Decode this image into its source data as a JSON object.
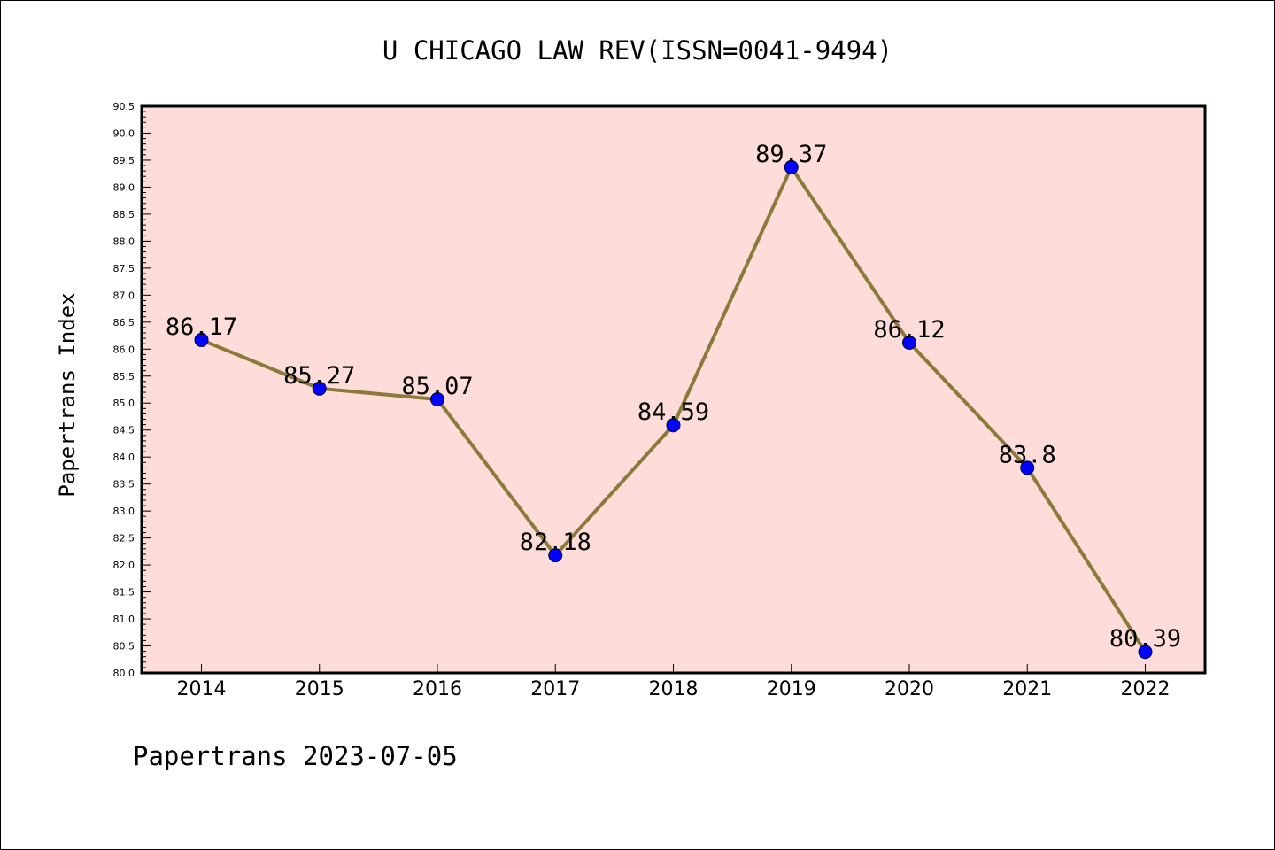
{
  "chart_data": {
    "type": "line",
    "title": "U CHICAGO LAW REV(ISSN=0041-9494)",
    "ylabel": "Papertrans Index",
    "xlabel": "",
    "categories": [
      "2014",
      "2015",
      "2016",
      "2017",
      "2018",
      "2019",
      "2020",
      "2021",
      "2022"
    ],
    "series": [
      {
        "values": [
          86.17,
          85.27,
          85.07,
          82.18,
          84.59,
          89.37,
          86.12,
          83.8,
          80.39
        ]
      }
    ],
    "data_labels": [
      "86.17",
      "85.27",
      "85.07",
      "82.18",
      "84.59",
      "89.37",
      "86.12",
      "83.8",
      "80.39"
    ],
    "ylim": [
      80.0,
      90.5
    ],
    "yticks": [
      "80.0",
      "80.5",
      "81.0",
      "81.5",
      "82.0",
      "82.5",
      "83.0",
      "83.5",
      "84.0",
      "84.5",
      "85.0",
      "85.5",
      "86.0",
      "86.5",
      "87.0",
      "87.5",
      "88.0",
      "88.5",
      "89.0",
      "89.5",
      "90.0",
      "90.5"
    ],
    "grid": false,
    "colors": {
      "plot_background": "#fddcd9",
      "line": "#8b7a3a",
      "marker": "#0000ff"
    }
  },
  "footer": {
    "text": "Papertrans 2023-07-05"
  }
}
